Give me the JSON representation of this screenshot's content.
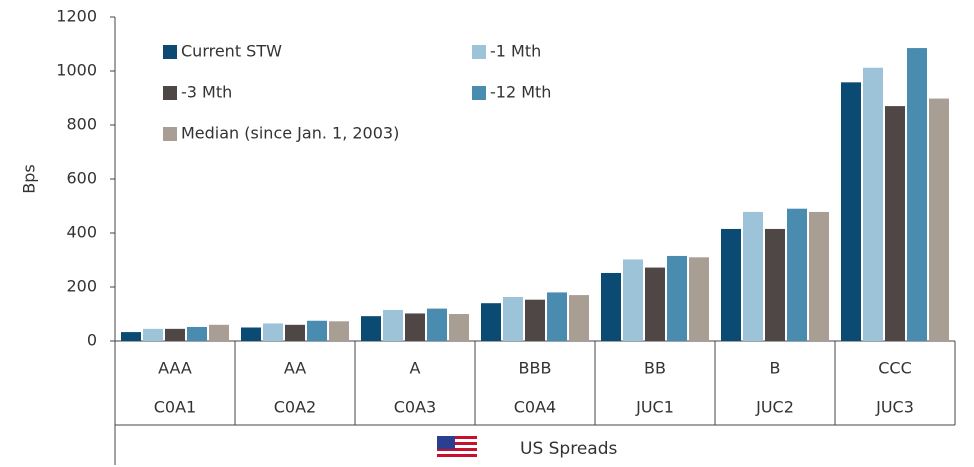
{
  "chart_data": {
    "type": "bar",
    "y_label": "Bps",
    "x_label": "US Spreads",
    "categories": [
      "AAA",
      "AA",
      "A",
      "BBB",
      "BB",
      "B",
      "CCC"
    ],
    "category_codes": [
      "C0A1",
      "C0A2",
      "C0A3",
      "C0A4",
      "JUC1",
      "JUC2",
      "JUC3"
    ],
    "series": [
      {
        "name": "Current STW",
        "color": "#0b4a72",
        "values": [
          33,
          50,
          92,
          140,
          252,
          415,
          958
        ]
      },
      {
        "name": "-1 Mth",
        "color": "#9dc3d8",
        "values": [
          45,
          65,
          115,
          163,
          302,
          478,
          1012
        ]
      },
      {
        "name": "-3 Mth",
        "color": "#4f4646",
        "values": [
          45,
          60,
          102,
          153,
          272,
          415,
          870
        ]
      },
      {
        "name": "-12 Mth",
        "color": "#4a8cb0",
        "values": [
          52,
          75,
          120,
          180,
          315,
          490,
          1085
        ]
      },
      {
        "name": "Median (since Jan. 1, 2003)",
        "color": "#a89e94",
        "values": [
          60,
          73,
          100,
          170,
          310,
          478,
          898
        ]
      }
    ],
    "ylim": [
      0,
      1200
    ],
    "yticks": [
      0,
      200,
      400,
      600,
      800,
      1000,
      1200
    ],
    "grid": false,
    "legend": "upper left"
  }
}
